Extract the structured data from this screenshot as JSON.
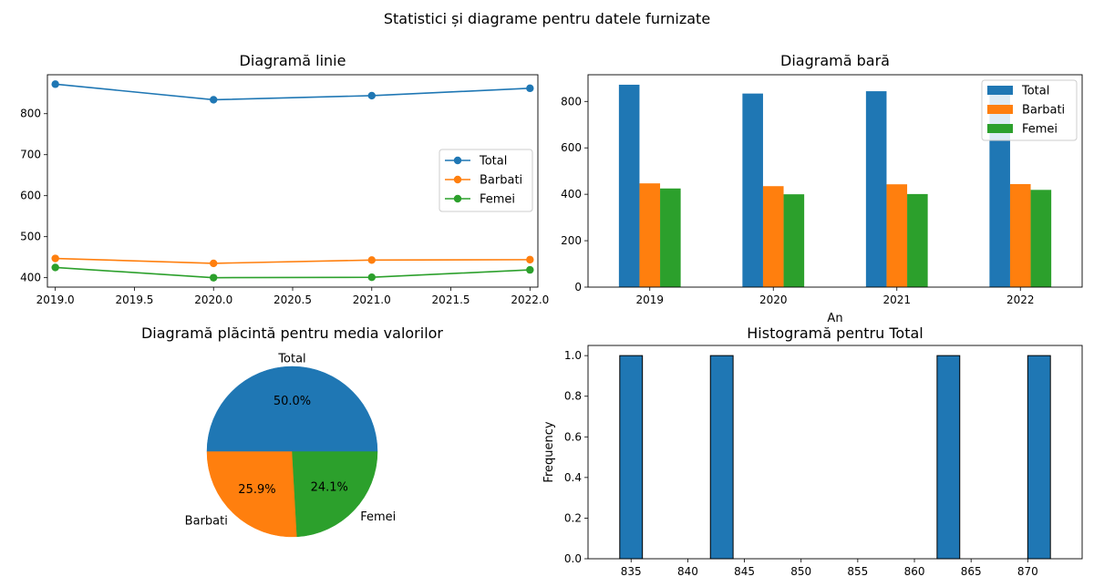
{
  "figure": {
    "title": "Statistici și diagrame pentru datele furnizate"
  },
  "colors": {
    "total": "#1f77b4",
    "barbati": "#ff7f0e",
    "femei": "#2ca02c"
  },
  "chart_data": [
    {
      "id": "line",
      "type": "line",
      "title": "Diagramă linie",
      "xlabel": "",
      "ylabel": "",
      "x": [
        2019,
        2020,
        2021,
        2022
      ],
      "xlim": [
        2018.95,
        2022.05
      ],
      "ylim": [
        377,
        895
      ],
      "xticks": [
        2019,
        2019.5,
        2020,
        2020.5,
        2021,
        2021.5,
        2022
      ],
      "xtick_labels": [
        "2019.0",
        "2019.5",
        "2020.0",
        "2020.5",
        "2021.0",
        "2021.5",
        "2022.0"
      ],
      "yticks": [
        400,
        500,
        600,
        700,
        800
      ],
      "ytick_labels": [
        "400",
        "500",
        "600",
        "700",
        "800"
      ],
      "legend_position": "center-right",
      "series": [
        {
          "name": "Total",
          "values": [
            872,
            834,
            844,
            862
          ]
        },
        {
          "name": "Barbati",
          "values": [
            447,
            435,
            443,
            444
          ]
        },
        {
          "name": "Femei",
          "values": [
            425,
            400,
            401,
            419
          ]
        }
      ]
    },
    {
      "id": "bar",
      "type": "bar",
      "title": "Diagramă bară",
      "xlabel": "An",
      "ylabel": "",
      "categories": [
        "2019",
        "2020",
        "2021",
        "2022"
      ],
      "ylim": [
        0,
        915
      ],
      "yticks": [
        0,
        200,
        400,
        600,
        800
      ],
      "ytick_labels": [
        "0",
        "200",
        "400",
        "600",
        "800"
      ],
      "legend_position": "top-right",
      "series": [
        {
          "name": "Total",
          "values": [
            872,
            834,
            844,
            862
          ]
        },
        {
          "name": "Barbati",
          "values": [
            447,
            435,
            443,
            444
          ]
        },
        {
          "name": "Femei",
          "values": [
            425,
            400,
            401,
            419
          ]
        }
      ]
    },
    {
      "id": "pie",
      "type": "pie",
      "title": "Diagramă plăcintă pentru media valorilor",
      "slices": [
        {
          "label": "Total",
          "value": 50.0,
          "pct_label": "50.0%"
        },
        {
          "label": "Barbati",
          "value": 25.9,
          "pct_label": "25.9%"
        },
        {
          "label": "Femei",
          "value": 24.1,
          "pct_label": "24.1%"
        }
      ]
    },
    {
      "id": "hist",
      "type": "bar",
      "title": "Histogramă pentru Total",
      "xlabel": "",
      "ylabel": "Frequency",
      "xlim": [
        831.2,
        874.8
      ],
      "ylim": [
        0,
        1.05
      ],
      "xticks": [
        835,
        840,
        845,
        850,
        855,
        860,
        865,
        870
      ],
      "xtick_labels": [
        "835",
        "840",
        "845",
        "850",
        "855",
        "860",
        "865",
        "870"
      ],
      "yticks": [
        0,
        0.2,
        0.4,
        0.6,
        0.8,
        1.0
      ],
      "ytick_labels": [
        "0.0",
        "0.2",
        "0.4",
        "0.6",
        "0.8",
        "1.0"
      ],
      "bins": [
        {
          "start": 834.0,
          "end": 836.0,
          "count": 1
        },
        {
          "start": 842.0,
          "end": 844.0,
          "count": 1
        },
        {
          "start": 862.0,
          "end": 864.0,
          "count": 1
        },
        {
          "start": 870.0,
          "end": 872.0,
          "count": 1
        }
      ]
    }
  ]
}
